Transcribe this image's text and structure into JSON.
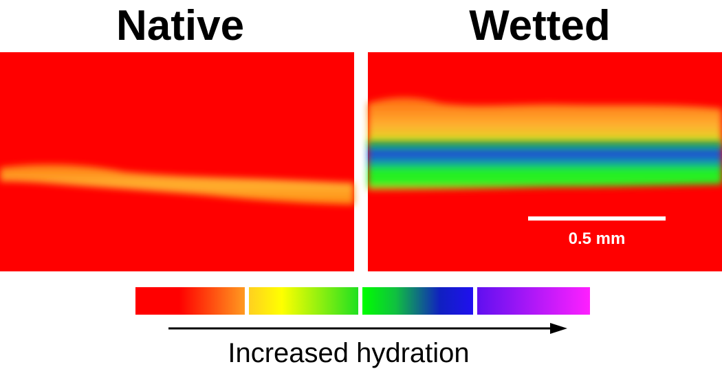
{
  "panels": [
    {
      "title": "Native"
    },
    {
      "title": "Wetted"
    }
  ],
  "scale_bar": {
    "label": "0.5 mm"
  },
  "colorbar": {
    "caption": "Increased hydration"
  }
}
